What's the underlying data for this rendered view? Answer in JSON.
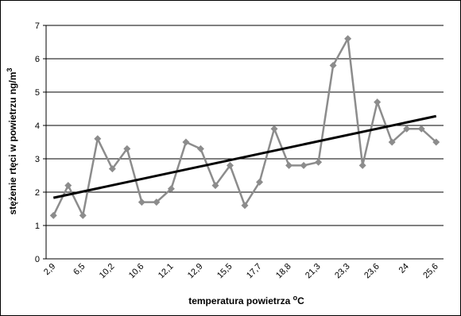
{
  "chart_data": {
    "type": "line",
    "ylabel": "stężenie rtęci w powietrzu ng/m",
    "ylabel_superscript": "3",
    "xlabel": [
      "temperatura powietrza ",
      "o",
      "C"
    ],
    "categories": [
      "2,9",
      null,
      "6,5",
      null,
      "10,2",
      null,
      "10,6",
      null,
      "12,1",
      null,
      "12,9",
      null,
      "15,5",
      null,
      "17,7",
      null,
      "18,8",
      null,
      "21,3",
      null,
      "23,3",
      null,
      "23,6",
      null,
      "24",
      null,
      "25,6"
    ],
    "series": [
      {
        "color": "#8c8c8c",
        "values": [
          1.3,
          2.2,
          1.3,
          3.6,
          2.7,
          3.3,
          1.7,
          1.7,
          2.1,
          3.5,
          3.3,
          2.2,
          2.8,
          1.6,
          2.3,
          3.9,
          2.8,
          2.8,
          2.9,
          5.8,
          6.6,
          2.8,
          4.7,
          3.5,
          3.9,
          3.9,
          3.5
        ]
      }
    ],
    "trendline": {
      "color": "#000000",
      "values": [
        1.83,
        4.28
      ]
    },
    "ylim": [
      0,
      7
    ],
    "yticks": [
      0,
      1,
      2,
      3,
      4,
      5,
      6,
      7
    ],
    "grid": true
  }
}
